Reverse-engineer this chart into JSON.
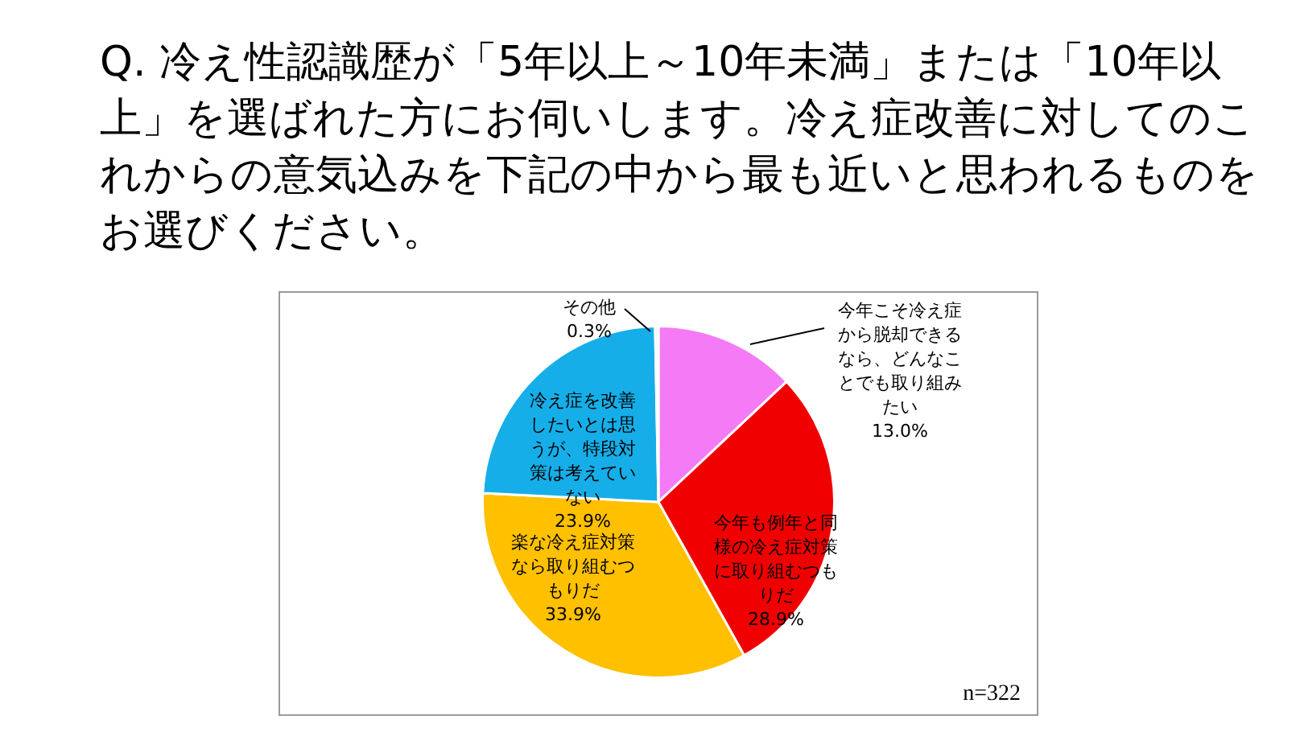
{
  "chart_data": {
    "type": "pie",
    "title": "Q. 冷え性認識歴が「5年以上～10年未満」または「10年以上」を選ばれた方にお伺いします。冷え症改善に対してのこれからの意気込みを下記の中から最も近いと思われるものをお選びください。",
    "categories": [
      "今年こそ冷え症から脱却できるなら、どんなことでも取り組みたい",
      "今年も例年と同様の冷え症対策に取り組むつもりだ",
      "楽な冷え症対策なら取り組むつもりだ",
      "冷え症を改善したいとは思うが、特段対策は考えていない",
      "その他"
    ],
    "values": [
      13.0,
      28.9,
      33.9,
      23.9,
      0.3
    ],
    "colors": [
      "#f57af5",
      "#f00000",
      "#ffc000",
      "#16aee8",
      "#eeeeee"
    ],
    "value_labels": [
      "13.0%",
      "28.9%",
      "33.9%",
      "23.9%",
      "0.3%"
    ],
    "annotations": [
      "n=322"
    ],
    "legend": false
  }
}
